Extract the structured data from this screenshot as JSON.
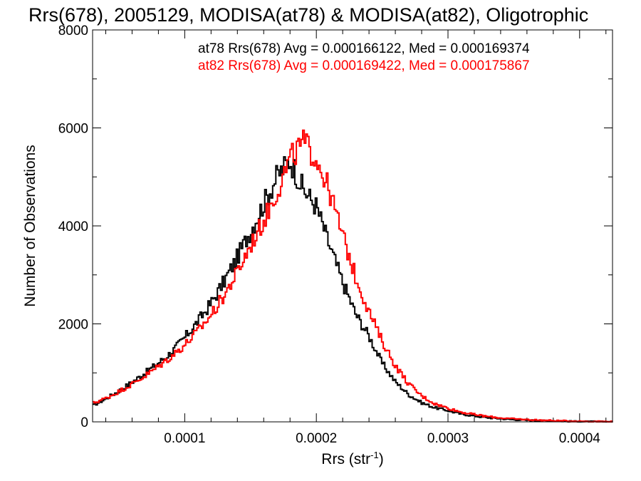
{
  "chart_data": {
    "type": "line",
    "step": true,
    "title": "Rrs(678), 2005129, MODISA(at78) & MODISA(at82), Oligotrophic",
    "xlabel": "Rrs (str",
    "xlabel_exponent": "-1",
    "xlabel_close": ")",
    "ylabel": "Number of Observations",
    "xlim": [
      3e-05,
      0.000425
    ],
    "ylim": [
      0,
      8000
    ],
    "xticks": [
      {
        "value": 0.0001,
        "label": "0.0001"
      },
      {
        "value": 0.0002,
        "label": "0.0002"
      },
      {
        "value": 0.0003,
        "label": "0.0003"
      },
      {
        "value": 0.0004,
        "label": "0.0004"
      }
    ],
    "yticks": [
      {
        "value": 0,
        "label": "0"
      },
      {
        "value": 2000,
        "label": "2000"
      },
      {
        "value": 4000,
        "label": "4000"
      },
      {
        "value": 6000,
        "label": "6000"
      },
      {
        "value": 8000,
        "label": "8000"
      }
    ],
    "annotations": [
      {
        "text": "at78 Rrs(678) Avg = 0.000166122, Med = 0.000169374",
        "color": "#000000"
      },
      {
        "text": "at82 Rrs(678) Avg = 0.000169422, Med = 0.000175867",
        "color": "#ff0000"
      }
    ],
    "series": [
      {
        "color": "#000000",
        "x": [
          3e-05,
          4e-05,
          5e-05,
          6e-05,
          7e-05,
          8e-05,
          9e-05,
          0.0001,
          0.00011,
          0.00012,
          0.00013,
          0.00014,
          0.00015,
          0.00016,
          0.00017,
          0.00018,
          0.00019,
          0.0002,
          0.00021,
          0.00022,
          0.00023,
          0.00024,
          0.00025,
          0.00026,
          0.00027,
          0.00028,
          0.00029,
          0.0003,
          0.00031,
          0.00032,
          0.00033,
          0.00034,
          0.00035,
          0.00036,
          0.00037,
          0.00038,
          0.00039,
          0.0004,
          0.00041,
          0.00042
        ],
        "y": [
          330,
          470,
          630,
          810,
          1000,
          1200,
          1420,
          1720,
          2050,
          2420,
          2870,
          3360,
          3900,
          4450,
          5000,
          5350,
          4750,
          4400,
          3600,
          2850,
          2200,
          1750,
          1200,
          820,
          560,
          390,
          290,
          230,
          160,
          120,
          85,
          65,
          45,
          35,
          25,
          18,
          12,
          8,
          5,
          3
        ]
      },
      {
        "color": "#ff0000",
        "x": [
          3e-05,
          4e-05,
          5e-05,
          6e-05,
          7e-05,
          8e-05,
          9e-05,
          0.0001,
          0.00011,
          0.00012,
          0.00013,
          0.00014,
          0.00015,
          0.00016,
          0.00017,
          0.00018,
          0.00019,
          0.0002,
          0.00021,
          0.00022,
          0.00023,
          0.00024,
          0.00025,
          0.00026,
          0.00027,
          0.00028,
          0.00029,
          0.0003,
          0.00031,
          0.00032,
          0.00033,
          0.00034,
          0.00035,
          0.00036,
          0.00037,
          0.00038,
          0.00039,
          0.0004,
          0.00041,
          0.00042
        ],
        "y": [
          380,
          480,
          620,
          770,
          940,
          1130,
          1340,
          1570,
          1850,
          2180,
          2580,
          3050,
          3600,
          4100,
          4700,
          5350,
          5700,
          5400,
          4700,
          3800,
          2950,
          2250,
          1650,
          1150,
          780,
          530,
          370,
          280,
          200,
          150,
          110,
          80,
          60,
          45,
          35,
          25,
          18,
          12,
          8,
          5
        ]
      }
    ]
  }
}
